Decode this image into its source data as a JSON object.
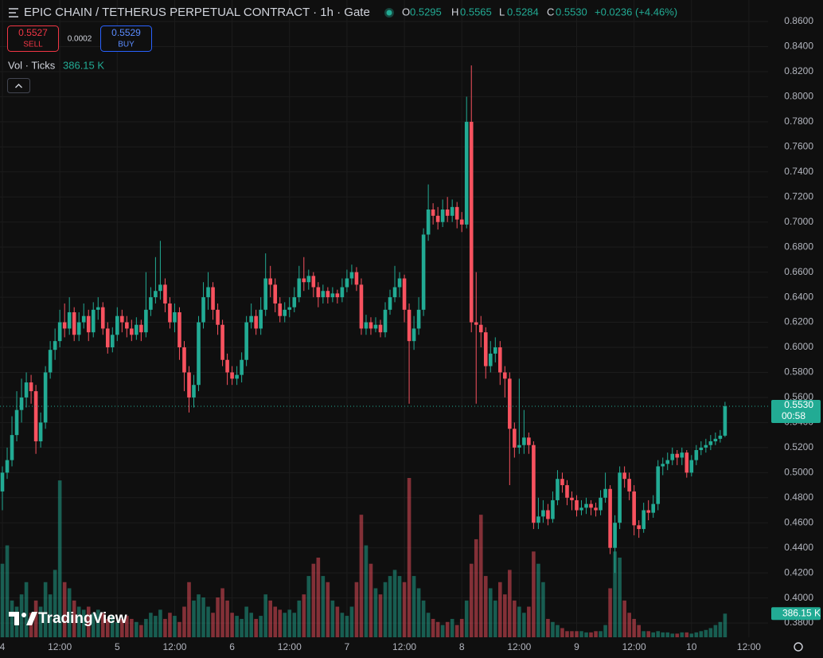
{
  "chart_data": {
    "type": "candlestick",
    "title": "EPIC CHAIN / TETHERUS PERPETUAL CONTRACT · 1h · Gate",
    "header": {
      "ohlc": [
        {
          "label": "O",
          "value": "0.5295"
        },
        {
          "label": "H",
          "value": "0.5565"
        },
        {
          "label": "L",
          "value": "0.5284"
        },
        {
          "label": "C",
          "value": "0.5530"
        }
      ],
      "change": "+0.0236 (+4.46%)"
    },
    "trade": {
      "sell_price": "0.5527",
      "sell_label": "SELL",
      "spread": "0.0002",
      "buy_price": "0.5529",
      "buy_label": "BUY"
    },
    "volume_title": "Vol · Ticks",
    "volume_label": "386.15 K",
    "last_price_label": "0.5530",
    "countdown": "00:58",
    "logo": "TradingView",
    "up_color": "#22ab94",
    "down_color": "#f7525f",
    "grid": true,
    "xlim": [
      -0.5,
      160
    ],
    "ylim": [
      0.3686,
      0.8772
    ],
    "xticks": [
      {
        "value": 0,
        "label": "4"
      },
      {
        "value": 12,
        "label": "12:00"
      },
      {
        "value": 24,
        "label": "5"
      },
      {
        "value": 36,
        "label": "12:00"
      },
      {
        "value": 48,
        "label": "6"
      },
      {
        "value": 60,
        "label": "12:00"
      },
      {
        "value": 72,
        "label": "7"
      },
      {
        "value": 84,
        "label": "12:00"
      },
      {
        "value": 96,
        "label": "8"
      },
      {
        "value": 108,
        "label": "12:00"
      },
      {
        "value": 120,
        "label": "9"
      },
      {
        "value": 132,
        "label": "12:00"
      },
      {
        "value": 144,
        "label": "10"
      },
      {
        "value": 156,
        "label": "12:00"
      }
    ],
    "yticks": [
      {
        "value": 0.38,
        "label": "0.3800"
      },
      {
        "value": 0.4,
        "label": "0.4000"
      },
      {
        "value": 0.42,
        "label": "0.4200"
      },
      {
        "value": 0.44,
        "label": "0.4400"
      },
      {
        "value": 0.46,
        "label": "0.4600"
      },
      {
        "value": 0.48,
        "label": "0.4800"
      },
      {
        "value": 0.5,
        "label": "0.5000"
      },
      {
        "value": 0.52,
        "label": "0.5200"
      },
      {
        "value": 0.54,
        "label": "0.5400"
      },
      {
        "value": 0.56,
        "label": "0.5600"
      },
      {
        "value": 0.58,
        "label": "0.5800"
      },
      {
        "value": 0.6,
        "label": "0.6000"
      },
      {
        "value": 0.62,
        "label": "0.6200"
      },
      {
        "value": 0.64,
        "label": "0.6400"
      },
      {
        "value": 0.66,
        "label": "0.6600"
      },
      {
        "value": 0.68,
        "label": "0.6800"
      },
      {
        "value": 0.7,
        "label": "0.7000"
      },
      {
        "value": 0.72,
        "label": "0.7200"
      },
      {
        "value": 0.74,
        "label": "0.7400"
      },
      {
        "value": 0.76,
        "label": "0.7600"
      },
      {
        "value": 0.78,
        "label": "0.7800"
      },
      {
        "value": 0.8,
        "label": "0.8000"
      },
      {
        "value": 0.82,
        "label": "0.8200"
      },
      {
        "value": 0.84,
        "label": "0.8400"
      },
      {
        "value": 0.86,
        "label": "0.8600"
      }
    ],
    "open": [
      0.485,
      0.5,
      0.51,
      0.53,
      0.55,
      0.56,
      0.572,
      0.565,
      0.525,
      0.54,
      0.58,
      0.598,
      0.605,
      0.62,
      0.615,
      0.628,
      0.61,
      0.62,
      0.625,
      0.612,
      0.63,
      0.632,
      0.615,
      0.6,
      0.61,
      0.625,
      0.62,
      0.615,
      0.61,
      0.618,
      0.612,
      0.63,
      0.64,
      0.645,
      0.65,
      0.635,
      0.62,
      0.628,
      0.6,
      0.58,
      0.56,
      0.57,
      0.62,
      0.64,
      0.648,
      0.63,
      0.618,
      0.59,
      0.58,
      0.575,
      0.578,
      0.59,
      0.62,
      0.625,
      0.615,
      0.63,
      0.655,
      0.65,
      0.635,
      0.625,
      0.63,
      0.632,
      0.64,
      0.655,
      0.652,
      0.657,
      0.648,
      0.64,
      0.645,
      0.64,
      0.643,
      0.64,
      0.648,
      0.655,
      0.66,
      0.65,
      0.615,
      0.62,
      0.615,
      0.618,
      0.612,
      0.63,
      0.64,
      0.648,
      0.655,
      0.63,
      0.605,
      0.615,
      0.63,
      0.69,
      0.71,
      0.705,
      0.7,
      0.71,
      0.705,
      0.712,
      0.702,
      0.698,
      0.78,
      0.62,
      0.618,
      0.612,
      0.585,
      0.595,
      0.6,
      0.58,
      0.575,
      0.535,
      0.52,
      0.522,
      0.528,
      0.522,
      0.46,
      0.465,
      0.47,
      0.463,
      0.478,
      0.495,
      0.49,
      0.48,
      0.478,
      0.47,
      0.472,
      0.475,
      0.472,
      0.47,
      0.48,
      0.487,
      0.44,
      0.46,
      0.5,
      0.495,
      0.485,
      0.458,
      0.455,
      0.47,
      0.468,
      0.475,
      0.505,
      0.507,
      0.51,
      0.515,
      0.512,
      0.516,
      0.5,
      0.51,
      0.518,
      0.52,
      0.522,
      0.525,
      0.527,
      0.5295
    ],
    "high": [
      0.505,
      0.52,
      0.545,
      0.565,
      0.575,
      0.58,
      0.578,
      0.57,
      0.548,
      0.585,
      0.605,
      0.615,
      0.63,
      0.635,
      0.64,
      0.632,
      0.628,
      0.635,
      0.63,
      0.636,
      0.64,
      0.636,
      0.62,
      0.616,
      0.632,
      0.63,
      0.625,
      0.622,
      0.624,
      0.622,
      0.66,
      0.648,
      0.672,
      0.685,
      0.655,
      0.64,
      0.635,
      0.632,
      0.605,
      0.585,
      0.578,
      0.625,
      0.652,
      0.66,
      0.652,
      0.635,
      0.622,
      0.595,
      0.585,
      0.585,
      0.596,
      0.625,
      0.635,
      0.63,
      0.64,
      0.675,
      0.665,
      0.655,
      0.64,
      0.636,
      0.64,
      0.648,
      0.665,
      0.672,
      0.662,
      0.66,
      0.652,
      0.65,
      0.648,
      0.648,
      0.646,
      0.655,
      0.662,
      0.666,
      0.664,
      0.655,
      0.626,
      0.624,
      0.624,
      0.622,
      0.636,
      0.646,
      0.665,
      0.66,
      0.658,
      0.635,
      0.625,
      0.64,
      0.695,
      0.73,
      0.715,
      0.712,
      0.718,
      0.72,
      0.718,
      0.716,
      0.708,
      0.8,
      0.825,
      0.66,
      0.625,
      0.616,
      0.605,
      0.608,
      0.605,
      0.585,
      0.58,
      0.54,
      0.575,
      0.55,
      0.532,
      0.525,
      0.48,
      0.478,
      0.475,
      0.485,
      0.502,
      0.5,
      0.494,
      0.485,
      0.482,
      0.478,
      0.48,
      0.478,
      0.476,
      0.486,
      0.5,
      0.49,
      0.466,
      0.505,
      0.505,
      0.5,
      0.49,
      0.462,
      0.476,
      0.478,
      0.482,
      0.51,
      0.512,
      0.516,
      0.52,
      0.518,
      0.52,
      0.518,
      0.514,
      0.522,
      0.525,
      0.527,
      0.53,
      0.532,
      0.534,
      0.5565
    ],
    "low": [
      0.47,
      0.495,
      0.505,
      0.525,
      0.54,
      0.552,
      0.555,
      0.515,
      0.52,
      0.535,
      0.575,
      0.59,
      0.6,
      0.608,
      0.61,
      0.605,
      0.605,
      0.615,
      0.605,
      0.608,
      0.622,
      0.61,
      0.595,
      0.596,
      0.605,
      0.612,
      0.608,
      0.605,
      0.606,
      0.605,
      0.608,
      0.625,
      0.635,
      0.638,
      0.628,
      0.615,
      0.612,
      0.59,
      0.565,
      0.548,
      0.552,
      0.565,
      0.615,
      0.63,
      0.622,
      0.61,
      0.585,
      0.57,
      0.57,
      0.57,
      0.572,
      0.585,
      0.615,
      0.61,
      0.61,
      0.625,
      0.64,
      0.628,
      0.62,
      0.62,
      0.624,
      0.628,
      0.636,
      0.645,
      0.646,
      0.64,
      0.632,
      0.635,
      0.635,
      0.636,
      0.635,
      0.636,
      0.644,
      0.65,
      0.645,
      0.61,
      0.61,
      0.61,
      0.612,
      0.608,
      0.608,
      0.626,
      0.636,
      0.64,
      0.62,
      0.555,
      0.598,
      0.61,
      0.625,
      0.685,
      0.698,
      0.694,
      0.696,
      0.7,
      0.7,
      0.695,
      0.692,
      0.695,
      0.612,
      0.555,
      0.6,
      0.575,
      0.58,
      0.588,
      0.57,
      0.56,
      0.49,
      0.512,
      0.515,
      0.515,
      0.515,
      0.455,
      0.455,
      0.46,
      0.458,
      0.46,
      0.474,
      0.484,
      0.474,
      0.47,
      0.465,
      0.466,
      0.467,
      0.466,
      0.465,
      0.466,
      0.476,
      0.435,
      0.42,
      0.455,
      0.488,
      0.478,
      0.45,
      0.448,
      0.452,
      0.462,
      0.464,
      0.47,
      0.498,
      0.502,
      0.506,
      0.506,
      0.506,
      0.496,
      0.497,
      0.506,
      0.514,
      0.516,
      0.518,
      0.522,
      0.524,
      0.5284
    ],
    "close": [
      0.5,
      0.51,
      0.53,
      0.55,
      0.56,
      0.572,
      0.565,
      0.525,
      0.54,
      0.58,
      0.598,
      0.605,
      0.62,
      0.615,
      0.628,
      0.61,
      0.62,
      0.625,
      0.612,
      0.63,
      0.632,
      0.615,
      0.6,
      0.61,
      0.625,
      0.62,
      0.615,
      0.61,
      0.618,
      0.612,
      0.63,
      0.64,
      0.645,
      0.65,
      0.635,
      0.62,
      0.628,
      0.6,
      0.58,
      0.56,
      0.57,
      0.62,
      0.64,
      0.648,
      0.63,
      0.618,
      0.59,
      0.58,
      0.575,
      0.578,
      0.59,
      0.62,
      0.625,
      0.615,
      0.63,
      0.655,
      0.65,
      0.635,
      0.625,
      0.63,
      0.632,
      0.64,
      0.655,
      0.652,
      0.657,
      0.648,
      0.64,
      0.645,
      0.64,
      0.643,
      0.64,
      0.648,
      0.655,
      0.66,
      0.65,
      0.615,
      0.62,
      0.615,
      0.618,
      0.612,
      0.63,
      0.64,
      0.648,
      0.655,
      0.63,
      0.605,
      0.615,
      0.63,
      0.69,
      0.71,
      0.705,
      0.7,
      0.71,
      0.705,
      0.712,
      0.702,
      0.698,
      0.78,
      0.62,
      0.618,
      0.612,
      0.585,
      0.595,
      0.6,
      0.58,
      0.575,
      0.535,
      0.52,
      0.522,
      0.528,
      0.522,
      0.46,
      0.465,
      0.47,
      0.463,
      0.478,
      0.495,
      0.49,
      0.48,
      0.478,
      0.47,
      0.472,
      0.475,
      0.472,
      0.47,
      0.48,
      0.487,
      0.44,
      0.46,
      0.5,
      0.495,
      0.485,
      0.458,
      0.455,
      0.47,
      0.468,
      0.475,
      0.505,
      0.507,
      0.51,
      0.515,
      0.512,
      0.516,
      0.5,
      0.51,
      0.518,
      0.52,
      0.522,
      0.525,
      0.527,
      0.5295,
      0.553
    ],
    "volume": [
      1200,
      1500,
      600,
      500,
      700,
      900,
      400,
      600,
      500,
      900,
      700,
      1100,
      2560,
      900,
      800,
      600,
      500,
      450,
      500,
      400,
      450,
      400,
      300,
      350,
      250,
      300,
      350,
      300,
      250,
      200,
      300,
      400,
      350,
      450,
      300,
      400,
      350,
      250,
      500,
      900,
      600,
      700,
      650,
      500,
      400,
      650,
      800,
      600,
      400,
      350,
      300,
      500,
      400,
      300,
      350,
      700,
      600,
      500,
      450,
      400,
      450,
      400,
      600,
      700,
      1000,
      1200,
      1300,
      1000,
      900,
      600,
      500,
      400,
      350,
      500,
      900,
      2000,
      1500,
      1200,
      800,
      700,
      900,
      1000,
      1100,
      1000,
      900,
      2600,
      1000,
      800,
      600,
      400,
      300,
      250,
      200,
      250,
      300,
      200,
      300,
      600,
      1200,
      1600,
      2000,
      1000,
      800,
      600,
      900,
      700,
      1100,
      600,
      500,
      400,
      500,
      1400,
      1200,
      900,
      300,
      250,
      200,
      150,
      100,
      100,
      100,
      100,
      80,
      80,
      100,
      100,
      200,
      800,
      1400,
      1300,
      600,
      400,
      300,
      200,
      100,
      100,
      80,
      100,
      80,
      80,
      60,
      60,
      80,
      80,
      60,
      80,
      100,
      120,
      150,
      200,
      250,
      386.15
    ]
  }
}
